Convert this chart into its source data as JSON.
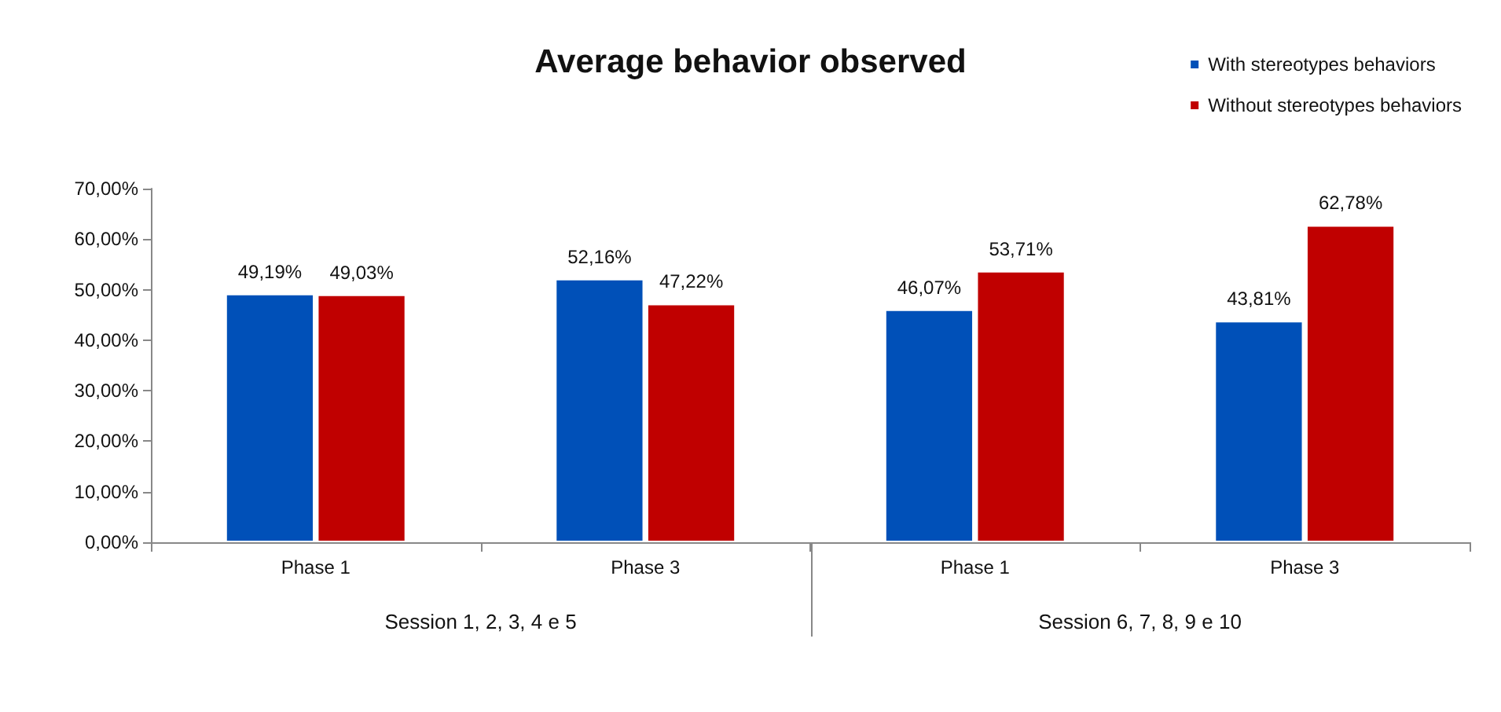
{
  "chart_data": {
    "type": "bar",
    "title": "Average behavior observed",
    "categories": [
      "Phase 1",
      "Phase 3",
      "Phase 1",
      "Phase 3"
    ],
    "series": [
      {
        "name": "With stereotypes behaviors",
        "color": "#0050b8",
        "values": [
          49.19,
          52.16,
          46.07,
          43.81
        ],
        "value_labels": [
          "49,19%",
          "52,16%",
          "46,07%",
          "43,81%"
        ]
      },
      {
        "name": "Without stereotypes behaviors",
        "color": "#c00000",
        "values": [
          49.03,
          47.22,
          53.71,
          62.78
        ],
        "value_labels": [
          "49,03%",
          "47,22%",
          "53,71%",
          "62,78%"
        ]
      }
    ],
    "ylim": [
      0,
      70
    ],
    "yticks": [
      {
        "value": 0,
        "label": "0,00%"
      },
      {
        "value": 10,
        "label": "10,00%"
      },
      {
        "value": 20,
        "label": "20,00%"
      },
      {
        "value": 30,
        "label": "30,00%"
      },
      {
        "value": 40,
        "label": "40,00%"
      },
      {
        "value": 50,
        "label": "50,00%"
      },
      {
        "value": 60,
        "label": "60,00%"
      },
      {
        "value": 70,
        "label": "70,00%"
      }
    ],
    "annotations": [
      "Session 1, 2, 3, 4 e 5",
      "Session 6, 7, 8, 9 e 10"
    ],
    "grid": false,
    "legend": "top right"
  }
}
